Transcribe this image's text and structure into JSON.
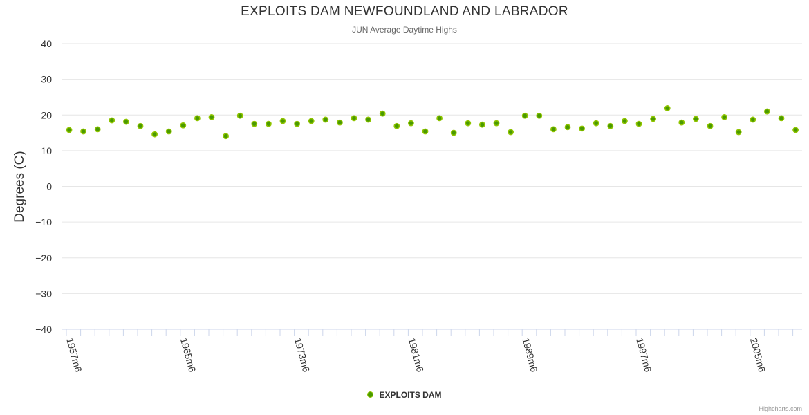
{
  "title": "EXPLOITS DAM NEWFOUNDLAND AND LABRADOR",
  "subtitle": "JUN Average Daytime Highs",
  "credits": "Highcharts.com",
  "chart_data": {
    "type": "scatter",
    "title": "EXPLOITS DAM NEWFOUNDLAND AND LABRADOR",
    "subtitle": "JUN Average Daytime Highs",
    "xlabel": "",
    "ylabel": "Degrees (C)",
    "ylim": [
      -40,
      40
    ],
    "yticks": [
      40,
      30,
      20,
      10,
      0,
      -10,
      -20,
      -30,
      -40
    ],
    "xlabels": [
      "1957m6",
      "1965m6",
      "1973m6",
      "1981m6",
      "1989m6",
      "1997m6",
      "2005m6"
    ],
    "xlabel_every": 8,
    "grid": true,
    "legend_position": "bottom-center",
    "colors": {
      "marker_fill": "#4a9a00",
      "marker_stroke": "#8fc400",
      "grid": "#e6e6e6",
      "axis": "#ccd6eb"
    },
    "series": [
      {
        "name": "EXPLOITS DAM",
        "x": [
          1957,
          1958,
          1959,
          1960,
          1961,
          1962,
          1963,
          1964,
          1965,
          1966,
          1967,
          1968,
          1969,
          1970,
          1971,
          1972,
          1973,
          1974,
          1975,
          1976,
          1977,
          1978,
          1979,
          1980,
          1981,
          1982,
          1983,
          1984,
          1985,
          1986,
          1987,
          1988,
          1989,
          1990,
          1991,
          1992,
          1993,
          1994,
          1995,
          1996,
          1997,
          1998,
          1999,
          2000,
          2001,
          2002,
          2003,
          2004,
          2005,
          2006,
          2007,
          2008
        ],
        "values": [
          15.8,
          15.4,
          16.0,
          18.5,
          18.1,
          16.9,
          14.6,
          15.4,
          17.1,
          19.1,
          19.4,
          14.1,
          19.8,
          17.5,
          17.5,
          18.3,
          17.5,
          18.3,
          18.7,
          17.9,
          19.1,
          18.7,
          20.4,
          16.9,
          17.7,
          15.4,
          19.1,
          15.0,
          17.7,
          17.3,
          17.7,
          15.2,
          19.8,
          19.8,
          16.0,
          16.6,
          16.2,
          17.7,
          16.9,
          18.3,
          17.5,
          18.9,
          21.9,
          17.9,
          18.9,
          16.9,
          19.4,
          15.2,
          18.7,
          21.0,
          19.1,
          15.8
        ]
      }
    ]
  }
}
